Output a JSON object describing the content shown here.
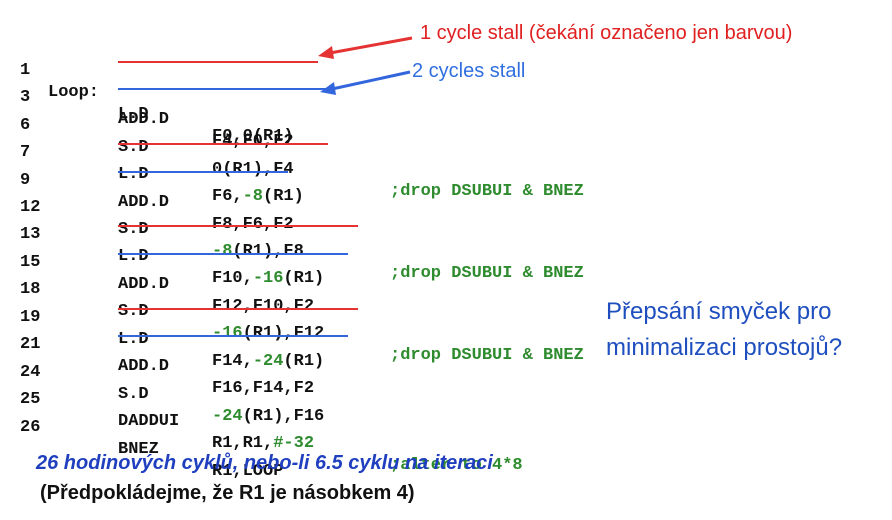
{
  "annotations": {
    "stall1": "1 cycle stall (čekání označeno jen barvou)",
    "stall2": "2 cycles stall"
  },
  "colors": {
    "red": "#e53333",
    "blue": "#3366dd",
    "green": "#2e8b2e",
    "question": "#1f4fbf"
  },
  "code": [
    {
      "num": "1",
      "label": "Loop:",
      "op": "L.D",
      "args": [
        "F0,0(R1)"
      ],
      "comment": ""
    },
    {
      "num": "3",
      "label": "",
      "op": "ADD.D",
      "args": [
        "F4,F0,F2"
      ],
      "comment": ""
    },
    {
      "num": "6",
      "label": "",
      "op": "S.D",
      "args": [
        "0(R1),F4"
      ],
      "comment": ";drop DSUBUI & BNEZ"
    },
    {
      "num": "7",
      "label": "",
      "op": "L.D",
      "args": [
        "F6,",
        "-8",
        "(R1)"
      ],
      "comment": ""
    },
    {
      "num": "9",
      "label": "",
      "op": "ADD.D",
      "args": [
        "F8,F6,F2"
      ],
      "comment": ""
    },
    {
      "num": "12",
      "label": "",
      "op": "S.D",
      "args": [
        "-8",
        "(R1),F8"
      ],
      "comment": ";drop DSUBUI & BNEZ"
    },
    {
      "num": "13",
      "label": "",
      "op": "L.D",
      "args": [
        "F10,",
        "-16",
        "(R1)"
      ],
      "comment": ""
    },
    {
      "num": "15",
      "label": "",
      "op": "ADD.D",
      "args": [
        "F12,F10,F2"
      ],
      "comment": ""
    },
    {
      "num": "18",
      "label": "",
      "op": "S.D",
      "args": [
        "-16",
        "(R1),F12"
      ],
      "comment": ";drop DSUBUI & BNEZ"
    },
    {
      "num": "19",
      "label": "",
      "op": "L.D",
      "args": [
        "F14,",
        "-24",
        "(R1)"
      ],
      "comment": ""
    },
    {
      "num": "21",
      "label": "",
      "op": "ADD.D",
      "args": [
        "F16,F14,F2"
      ],
      "comment": ""
    },
    {
      "num": "24",
      "label": "",
      "op": "S.D",
      "args": [
        "-24",
        "(R1),F16"
      ],
      "comment": ""
    },
    {
      "num": "25",
      "label": "",
      "op": "DADDUI",
      "args": [
        "R1,R1,",
        "#-32"
      ],
      "comment": ";alter to 4*8"
    },
    {
      "num": "26",
      "label": "",
      "op": "BNEZ",
      "args": [
        "R1,LOOP"
      ],
      "comment": ""
    }
  ],
  "question": "Přepsání smyček pro minimalizaci prostojů?",
  "footer": {
    "line1": "26 hodinových cyklů, nebo-li 6.5 cyklu na iteraci",
    "line2": "(Předpokládejme, že R1 je násobkem 4)"
  }
}
